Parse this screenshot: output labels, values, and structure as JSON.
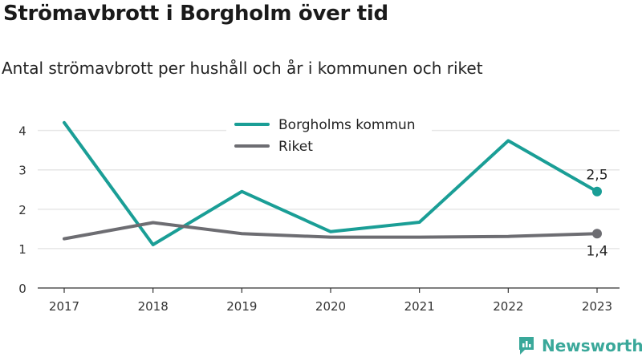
{
  "header": {
    "title": "Strömavbrott i Borgholm över tid",
    "subtitle": "Antal strömavbrott per hushåll och år i kommunen och riket"
  },
  "branding": {
    "logo_text": "Newsworthy"
  },
  "colors": {
    "kommun": "#1a9e96",
    "riket": "#6d6d72",
    "grid": "#e6e6e6",
    "axis": "#333333",
    "brand": "#3aa89a"
  },
  "chart_data": {
    "type": "line",
    "title": "",
    "xlabel": "",
    "ylabel": "",
    "categories": [
      "2017",
      "2018",
      "2019",
      "2020",
      "2021",
      "2022",
      "2023"
    ],
    "ylim": [
      0,
      4.4
    ],
    "yticks": [
      0,
      1,
      2,
      3,
      4
    ],
    "grid": true,
    "legend": "top-center",
    "series": [
      {
        "name": "Borgholms kommun",
        "color_key": "kommun",
        "values": [
          4.2,
          1.1,
          2.45,
          1.43,
          1.67,
          3.74,
          2.45
        ],
        "end_label": "2,5",
        "end_label_side": "above"
      },
      {
        "name": "Riket",
        "color_key": "riket",
        "values": [
          1.25,
          1.66,
          1.38,
          1.29,
          1.29,
          1.31,
          1.38
        ],
        "end_label": "1,4",
        "end_label_side": "below"
      }
    ]
  }
}
